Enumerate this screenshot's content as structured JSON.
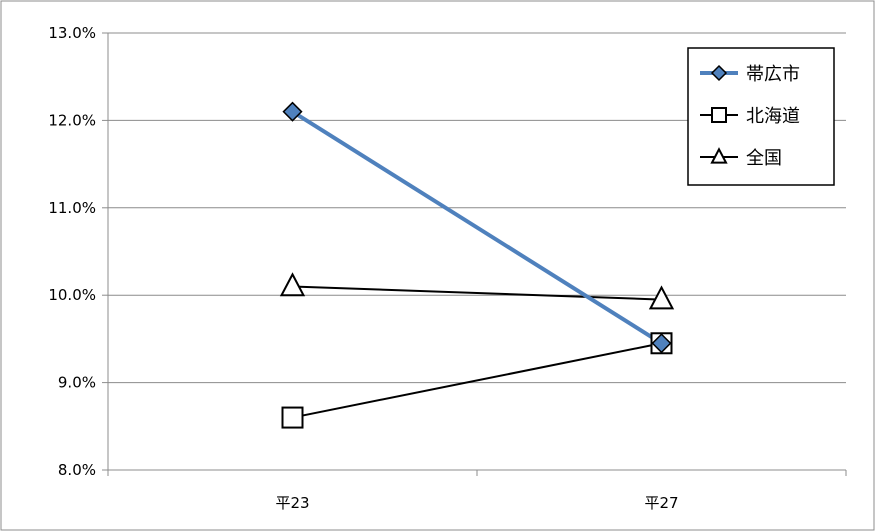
{
  "chart_data": {
    "type": "line",
    "title": "",
    "xlabel": "",
    "ylabel": "",
    "categories": [
      "平23",
      "平27"
    ],
    "ylim": [
      8.0,
      13.0
    ],
    "y_ticks": [
      "8.0%",
      "9.0%",
      "10.0%",
      "11.0%",
      "12.0%",
      "13.0%"
    ],
    "grid": true,
    "legend_position": "top-right",
    "series": [
      {
        "name": "帯広市",
        "values": [
          12.1,
          9.45
        ],
        "color": "#4f81bd",
        "marker": "diamond"
      },
      {
        "name": "北海道",
        "values": [
          8.6,
          9.45
        ],
        "color": "#000000",
        "marker": "square"
      },
      {
        "name": "全国",
        "values": [
          10.1,
          9.95
        ],
        "color": "#000000",
        "marker": "triangle"
      }
    ]
  }
}
